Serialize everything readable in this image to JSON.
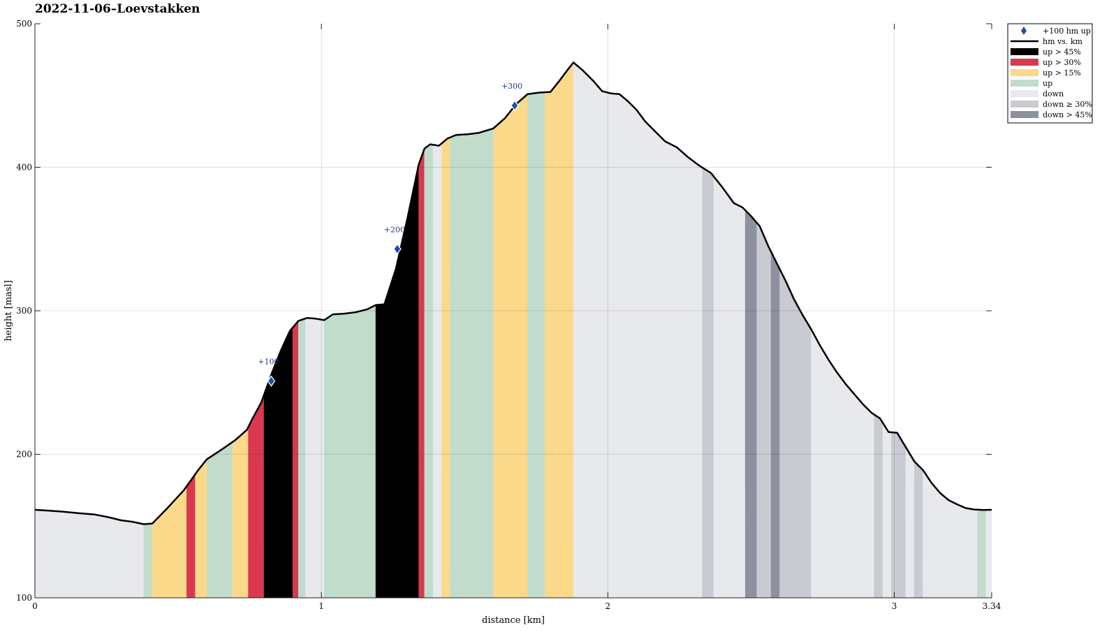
{
  "chart_data": {
    "type": "area",
    "title": "2022-11-06–Loevstakken",
    "xlabel": "distance [km]",
    "ylabel": "height [masl]",
    "xlim": [
      0,
      3.34
    ],
    "ylim": [
      100,
      500
    ],
    "xticks": [
      0,
      1,
      2,
      3,
      3.34
    ],
    "xtick_labels": [
      "0",
      "1",
      "2",
      "3",
      "3.34"
    ],
    "yticks": [
      100,
      200,
      300,
      400,
      500
    ],
    "ytick_labels": [
      "100",
      "200",
      "300",
      "400",
      "500"
    ],
    "grid": true,
    "legend_position": "top-right",
    "legend": [
      {
        "key": "marker",
        "label": "+100 hm up"
      },
      {
        "key": "line",
        "label": "hm vs. km"
      },
      {
        "key": "up45",
        "label": "up > 45%"
      },
      {
        "key": "up30",
        "label": "up > 30%"
      },
      {
        "key": "up15",
        "label": "up > 15%"
      },
      {
        "key": "up",
        "label": "up"
      },
      {
        "key": "down",
        "label": "down"
      },
      {
        "key": "down30",
        "label": "down ≥ 30%"
      },
      {
        "key": "down45",
        "label": "down > 45%"
      }
    ],
    "colors": {
      "up45": "#000000",
      "up30": "#d9394e",
      "up15": "#fbd98a",
      "up": "#c1dccd",
      "down": "#e8e9ec",
      "down30": "#c8cbd2",
      "down45": "#8d909d",
      "line": "#000000",
      "marker": "#1f4ea8"
    },
    "profile": [
      [
        0.0,
        161.3
      ],
      [
        0.05,
        160.7
      ],
      [
        0.1,
        160.0
      ],
      [
        0.15,
        159.0
      ],
      [
        0.21,
        158.0
      ],
      [
        0.26,
        156.0
      ],
      [
        0.3,
        154.0
      ],
      [
        0.34,
        153.0
      ],
      [
        0.38,
        151.3
      ],
      [
        0.41,
        151.8
      ],
      [
        0.46,
        162.0
      ],
      [
        0.52,
        175.0
      ],
      [
        0.57,
        189.0
      ],
      [
        0.6,
        196.5
      ],
      [
        0.65,
        203.0
      ],
      [
        0.7,
        210.0
      ],
      [
        0.74,
        217.0
      ],
      [
        0.76,
        225.0
      ],
      [
        0.79,
        236.0
      ],
      [
        0.83,
        258.0
      ],
      [
        0.86,
        273.0
      ],
      [
        0.89,
        286.0
      ],
      [
        0.92,
        293.0
      ],
      [
        0.95,
        295.0
      ],
      [
        0.98,
        294.5
      ],
      [
        1.01,
        293.5
      ],
      [
        1.04,
        297.5
      ],
      [
        1.08,
        298.0
      ],
      [
        1.12,
        299.0
      ],
      [
        1.16,
        301.0
      ],
      [
        1.19,
        304.0
      ],
      [
        1.22,
        304.5
      ],
      [
        1.26,
        329.0
      ],
      [
        1.3,
        364.0
      ],
      [
        1.34,
        402.0
      ],
      [
        1.36,
        413.0
      ],
      [
        1.38,
        416.0
      ],
      [
        1.41,
        415.0
      ],
      [
        1.44,
        420.0
      ],
      [
        1.47,
        422.5
      ],
      [
        1.51,
        423.0
      ],
      [
        1.55,
        424.0
      ],
      [
        1.6,
        427.0
      ],
      [
        1.64,
        434.0
      ],
      [
        1.68,
        444.0
      ],
      [
        1.72,
        451.0
      ],
      [
        1.76,
        452.0
      ],
      [
        1.8,
        452.5
      ],
      [
        1.83,
        460.0
      ],
      [
        1.86,
        468.0
      ],
      [
        1.88,
        473.0
      ],
      [
        1.91,
        468.0
      ],
      [
        1.95,
        460.0
      ],
      [
        1.98,
        453.0
      ],
      [
        2.01,
        451.5
      ],
      [
        2.04,
        451.0
      ],
      [
        2.07,
        446.0
      ],
      [
        2.1,
        440.0
      ],
      [
        2.13,
        432.0
      ],
      [
        2.16,
        426.0
      ],
      [
        2.2,
        418.0
      ],
      [
        2.24,
        414.0
      ],
      [
        2.28,
        407.0
      ],
      [
        2.32,
        401.0
      ],
      [
        2.36,
        396.0
      ],
      [
        2.4,
        386.0
      ],
      [
        2.44,
        375.0
      ],
      [
        2.47,
        372.0
      ],
      [
        2.5,
        366.0
      ],
      [
        2.53,
        359.0
      ],
      [
        2.56,
        345.0
      ],
      [
        2.59,
        333.0
      ],
      [
        2.62,
        321.0
      ],
      [
        2.65,
        308.0
      ],
      [
        2.68,
        297.0
      ],
      [
        2.71,
        287.0
      ],
      [
        2.74,
        276.0
      ],
      [
        2.77,
        266.0
      ],
      [
        2.8,
        257.0
      ],
      [
        2.83,
        249.0
      ],
      [
        2.86,
        242.0
      ],
      [
        2.89,
        235.0
      ],
      [
        2.92,
        229.0
      ],
      [
        2.95,
        225.0
      ],
      [
        2.98,
        215.5
      ],
      [
        3.01,
        215.0
      ],
      [
        3.04,
        205.0
      ],
      [
        3.07,
        195.0
      ],
      [
        3.1,
        189.0
      ],
      [
        3.13,
        180.0
      ],
      [
        3.16,
        173.0
      ],
      [
        3.19,
        168.0
      ],
      [
        3.22,
        165.0
      ],
      [
        3.25,
        162.5
      ],
      [
        3.28,
        161.5
      ],
      [
        3.31,
        161.2
      ],
      [
        3.34,
        161.3
      ]
    ],
    "segments": [
      [
        0.0,
        0.38,
        "down"
      ],
      [
        0.38,
        0.41,
        "up"
      ],
      [
        0.41,
        0.53,
        "up15"
      ],
      [
        0.53,
        0.56,
        "up30"
      ],
      [
        0.56,
        0.6,
        "up15"
      ],
      [
        0.6,
        0.69,
        "up"
      ],
      [
        0.69,
        0.745,
        "up15"
      ],
      [
        0.745,
        0.8,
        "up30"
      ],
      [
        0.8,
        0.9,
        "up45"
      ],
      [
        0.9,
        0.92,
        "up30"
      ],
      [
        0.92,
        0.945,
        "up"
      ],
      [
        0.945,
        1.01,
        "down"
      ],
      [
        1.01,
        1.19,
        "up"
      ],
      [
        1.19,
        1.34,
        "up45"
      ],
      [
        1.34,
        1.36,
        "up30"
      ],
      [
        1.36,
        1.39,
        "up"
      ],
      [
        1.39,
        1.42,
        "down"
      ],
      [
        1.42,
        1.45,
        "up15"
      ],
      [
        1.45,
        1.6,
        "up"
      ],
      [
        1.6,
        1.72,
        "up15"
      ],
      [
        1.72,
        1.78,
        "up"
      ],
      [
        1.78,
        1.88,
        "up15"
      ],
      [
        1.88,
        2.33,
        "down"
      ],
      [
        2.33,
        2.37,
        "down30"
      ],
      [
        2.37,
        2.48,
        "down"
      ],
      [
        2.48,
        2.52,
        "down45"
      ],
      [
        2.52,
        2.57,
        "down30"
      ],
      [
        2.57,
        2.6,
        "down45"
      ],
      [
        2.6,
        2.71,
        "down30"
      ],
      [
        2.71,
        2.93,
        "down"
      ],
      [
        2.93,
        2.96,
        "down30"
      ],
      [
        2.96,
        2.99,
        "down"
      ],
      [
        2.99,
        3.04,
        "down30"
      ],
      [
        3.04,
        3.07,
        "down"
      ],
      [
        3.07,
        3.1,
        "down30"
      ],
      [
        3.1,
        3.29,
        "down"
      ],
      [
        3.29,
        3.32,
        "up"
      ],
      [
        3.32,
        3.34,
        "down"
      ]
    ],
    "markers": [
      {
        "x": 0.825,
        "y": 251,
        "label": "+100"
      },
      {
        "x": 1.265,
        "y": 343,
        "label": "+200"
      },
      {
        "x": 1.675,
        "y": 443,
        "label": "+300"
      }
    ]
  }
}
